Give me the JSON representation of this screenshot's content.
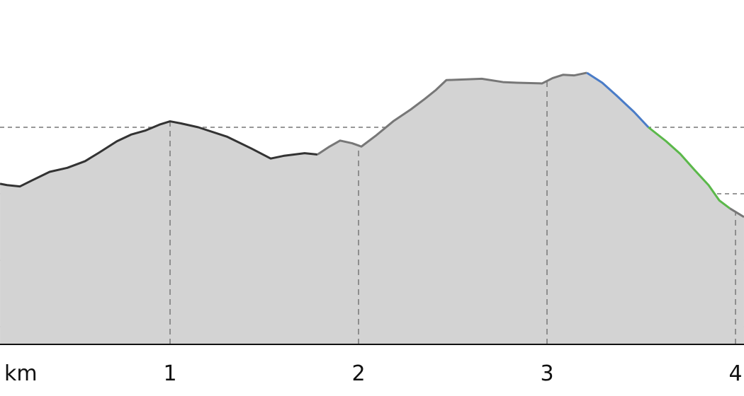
{
  "chart_data": {
    "type": "area",
    "xlabel": "km",
    "x_ticks": [
      "1",
      "2",
      "3",
      "4"
    ],
    "x_tick_values": [
      1,
      2,
      3,
      4
    ],
    "xlim": [
      0.1,
      4.045
    ],
    "ylim": [
      -0.27,
      4.9
    ],
    "grid": true,
    "y_grid_values": [
      0,
      1,
      2,
      3
    ],
    "fill_color": "#d3d3d3",
    "segments": [
      {
        "color": "#333333",
        "to_km": 1.782
      },
      {
        "color": "#777777",
        "to_km": 3.211
      },
      {
        "color": "#4a7cc7",
        "to_km": 3.538
      },
      {
        "color": "#5bb84a",
        "to_km": 3.97
      },
      {
        "color": "#777777",
        "to_km": 4.045
      }
    ],
    "x": [
      0.098,
      0.135,
      0.203,
      0.267,
      0.361,
      0.455,
      0.549,
      0.624,
      0.718,
      0.793,
      0.868,
      0.944,
      1.0,
      1.056,
      1.15,
      1.301,
      1.432,
      1.534,
      1.602,
      1.714,
      1.782,
      1.846,
      1.902,
      1.966,
      2.015,
      2.09,
      2.184,
      2.278,
      2.353,
      2.41,
      2.466,
      2.654,
      2.767,
      2.842,
      2.974,
      3.03,
      3.086,
      3.143,
      3.211,
      3.293,
      3.368,
      3.462,
      3.538,
      3.632,
      3.707,
      3.782,
      3.857,
      3.914,
      3.97,
      4.045
    ],
    "y": [
      2.15,
      2.13,
      2.11,
      2.2,
      2.33,
      2.39,
      2.49,
      2.62,
      2.79,
      2.89,
      2.95,
      3.04,
      3.09,
      3.06,
      3.0,
      2.86,
      2.68,
      2.53,
      2.57,
      2.61,
      2.59,
      2.71,
      2.8,
      2.76,
      2.71,
      2.87,
      3.09,
      3.27,
      3.43,
      3.56,
      3.71,
      3.73,
      3.68,
      3.67,
      3.66,
      3.74,
      3.79,
      3.78,
      3.82,
      3.67,
      3.48,
      3.23,
      3.0,
      2.79,
      2.6,
      2.36,
      2.13,
      1.9,
      1.78,
      1.65
    ]
  }
}
